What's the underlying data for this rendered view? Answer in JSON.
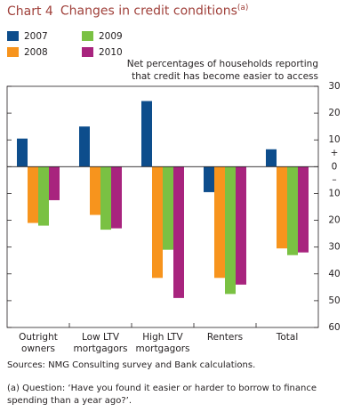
{
  "chart_data": {
    "type": "bar",
    "chart_number": "Chart 4",
    "title": "Changes in credit conditions",
    "title_note": "(a)",
    "y_label": [
      "Net percentages of households reporting",
      "that credit has become easier to access"
    ],
    "axis_signs": [
      "+",
      "–"
    ],
    "categories": [
      "Outright owners",
      "Low LTV mortgagors",
      "High LTV mortgagors",
      "Renters",
      "Total"
    ],
    "series": [
      {
        "name": "2007",
        "color": "#0d4d8c",
        "values": [
          10.5,
          15,
          24.5,
          -9.5,
          6.5
        ]
      },
      {
        "name": "2008",
        "color": "#f7941d",
        "values": [
          -21,
          -18,
          -41.5,
          -41.5,
          -30.5
        ]
      },
      {
        "name": "2009",
        "color": "#7ac143",
        "values": [
          -22,
          -23.5,
          -31,
          -47.5,
          -33
        ]
      },
      {
        "name": "2010",
        "color": "#a8247e",
        "values": [
          -12.5,
          -23,
          -49,
          -44,
          -32
        ]
      }
    ],
    "ylim": [
      -60,
      30
    ],
    "yticks": [
      {
        "value": 30,
        "label": "30"
      },
      {
        "value": 20,
        "label": "20"
      },
      {
        "value": 10,
        "label": "10"
      },
      {
        "value": 0,
        "label": "0"
      },
      {
        "value": -10,
        "label": "10"
      },
      {
        "value": -20,
        "label": "20"
      },
      {
        "value": -30,
        "label": "30"
      },
      {
        "value": -40,
        "label": "40"
      },
      {
        "value": -50,
        "label": "50"
      },
      {
        "value": -60,
        "label": "60"
      }
    ],
    "source": "Sources: NMG Consulting survey and Bank calculations.",
    "footnote": "(a) Question: ‘Have you found it easier or harder to borrow to finance spending than a year ago?’."
  }
}
